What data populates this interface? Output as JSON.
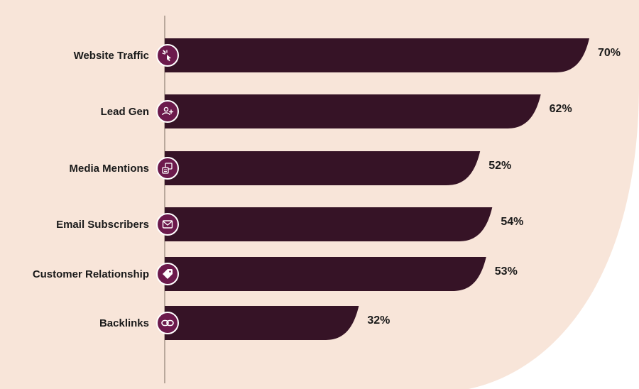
{
  "colors": {
    "background": "#f8e5d9",
    "bar": "#361326",
    "icon_fill": "#6c1a4c",
    "icon_stroke": "#ffffff",
    "axis": "#7a6a60",
    "text": "#1a1a1a"
  },
  "chart_data": {
    "type": "bar",
    "orientation": "horizontal",
    "title": "",
    "xlabel": "",
    "ylabel": "",
    "categories": [
      "Website Traffic",
      "Lead Gen",
      "Media Mentions",
      "Email Subscribers",
      "Customer Relationship",
      "Backlinks"
    ],
    "values": [
      70,
      62,
      52,
      54,
      53,
      32
    ],
    "value_labels": [
      "70%",
      "62%",
      "52%",
      "54%",
      "53%",
      "32%"
    ],
    "icons": [
      "cursor-click-icon",
      "user-add-icon",
      "media-icon",
      "mail-icon",
      "tag-icon",
      "link-icon"
    ],
    "xlim": [
      0,
      70
    ],
    "grid": false,
    "legend": "none"
  }
}
